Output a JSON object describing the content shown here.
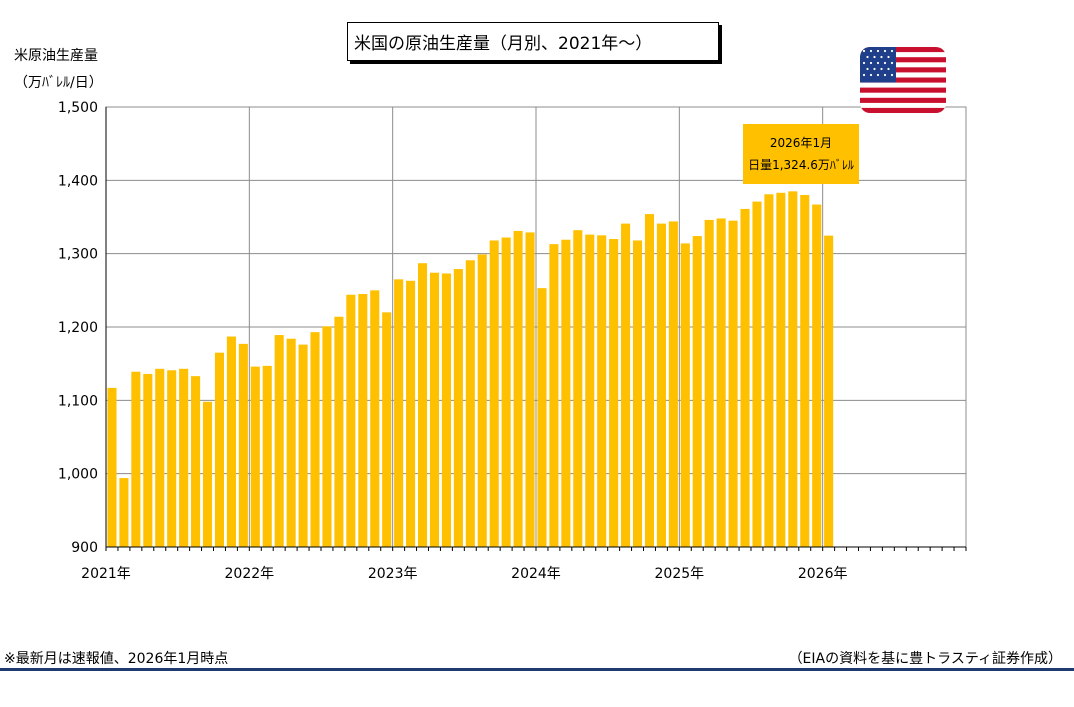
{
  "title": "米国の原油生産量（月別、2021年～）",
  "ylabel_line1": "米原油生産量",
  "ylabel_line2": "（万ﾊﾞﾚﾙ/日）",
  "callout": {
    "line1": "2026年1月",
    "line2": "日量1,324.6万ﾊﾞﾚﾙ"
  },
  "note_left": "※最新月は速報値、2026年1月時点",
  "note_right": "（EIAの資料を基に豊トラスティ証券作成）",
  "colors": {
    "bar": "#ffc000",
    "grid": "#8c8c8c",
    "rule": "#1f3a6e"
  },
  "chart_data": {
    "type": "bar",
    "title": "米国の原油生産量（月別、2021年～）",
    "ylabel": "米原油生産量（万ﾊﾞﾚﾙ/日）",
    "xlabel": "",
    "ylim": [
      900,
      1500
    ],
    "yticks": [
      900,
      1000,
      1100,
      1200,
      1300,
      1400,
      1500
    ],
    "ytick_labels": [
      "900",
      "1,000",
      "1,100",
      "1,200",
      "1,300",
      "1,400",
      "1,500"
    ],
    "xtick_labels": [
      "2021年",
      "2022年",
      "2023年",
      "2024年",
      "2025年",
      "2026年"
    ],
    "x_range": [
      "2021-01",
      "2026-12"
    ],
    "grid": true,
    "categories": [
      "2021-01",
      "2021-02",
      "2021-03",
      "2021-04",
      "2021-05",
      "2021-06",
      "2021-07",
      "2021-08",
      "2021-09",
      "2021-10",
      "2021-11",
      "2021-12",
      "2022-01",
      "2022-02",
      "2022-03",
      "2022-04",
      "2022-05",
      "2022-06",
      "2022-07",
      "2022-08",
      "2022-09",
      "2022-10",
      "2022-11",
      "2022-12",
      "2023-01",
      "2023-02",
      "2023-03",
      "2023-04",
      "2023-05",
      "2023-06",
      "2023-07",
      "2023-08",
      "2023-09",
      "2023-10",
      "2023-11",
      "2023-12",
      "2024-01",
      "2024-02",
      "2024-03",
      "2024-04",
      "2024-05",
      "2024-06",
      "2024-07",
      "2024-08",
      "2024-09",
      "2024-10",
      "2024-11",
      "2024-12",
      "2025-01",
      "2025-02",
      "2025-03",
      "2025-04",
      "2025-05",
      "2025-06",
      "2025-07",
      "2025-08",
      "2025-09",
      "2025-10",
      "2025-11",
      "2025-12",
      "2026-01"
    ],
    "values": [
      1117,
      994,
      1139,
      1136,
      1143,
      1141,
      1143,
      1133,
      1098,
      1165,
      1187,
      1177,
      1146,
      1147,
      1189,
      1184,
      1176,
      1193,
      1201,
      1214,
      1244,
      1245,
      1250,
      1220,
      1265,
      1263,
      1287,
      1274,
      1273,
      1279,
      1291,
      1299,
      1318,
      1322,
      1331,
      1329,
      1253,
      1313,
      1319,
      1332,
      1326,
      1325,
      1320,
      1341,
      1318,
      1354,
      1341,
      1344,
      1314,
      1324,
      1346,
      1348,
      1345,
      1361,
      1371,
      1381,
      1383,
      1385,
      1380,
      1367,
      1324.6
    ]
  }
}
